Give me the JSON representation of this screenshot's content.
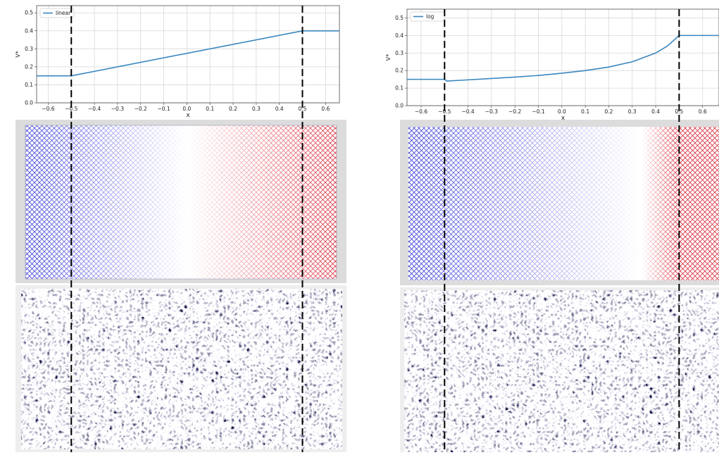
{
  "chart_data": [
    {
      "type": "line",
      "xlabel": "x",
      "ylabel": "V*",
      "grid": true,
      "legend": "upper left",
      "xlim": [
        -0.65,
        0.66
      ],
      "ylim": [
        0,
        0.54
      ],
      "xticks": [
        {
          "value": -0.6,
          "label": "−0.6"
        },
        {
          "value": -0.5,
          "label": "−0.5"
        },
        {
          "value": -0.4,
          "label": "−0.4"
        },
        {
          "value": -0.3,
          "label": "−0.3"
        },
        {
          "value": -0.2,
          "label": "−0.2"
        },
        {
          "value": -0.1,
          "label": "−0.1"
        },
        {
          "value": 0,
          "label": "0.0"
        },
        0.1,
        0.2,
        0.3,
        0.4,
        0.5,
        0.6
      ],
      "yticks": [
        {
          "value": 0,
          "label": "0.0"
        },
        0.1,
        0.2,
        0.3,
        0.4,
        0.5
      ],
      "vlines": [
        -0.5,
        0.5
      ],
      "x": [
        -0.65,
        -0.5,
        0.5,
        0.66
      ],
      "series": [
        {
          "name": "linear",
          "color": "#3a87c0",
          "values": [
            0.15,
            0.15,
            0.4,
            0.4
          ]
        }
      ]
    },
    {
      "type": "line",
      "xlabel": "x",
      "ylabel": "V*",
      "grid": true,
      "legend": "upper left",
      "xlim": [
        -0.66,
        0.67
      ],
      "ylim": [
        0,
        0.55
      ],
      "xticks": [
        {
          "value": -0.6,
          "label": "−0.6"
        },
        {
          "value": -0.5,
          "label": "−0.5"
        },
        {
          "value": -0.4,
          "label": "−0.4"
        },
        {
          "value": -0.3,
          "label": "−0.3"
        },
        {
          "value": -0.2,
          "label": "−0.2"
        },
        {
          "value": -0.1,
          "label": "−0.1"
        },
        {
          "value": 0,
          "label": "0.0"
        },
        0.1,
        0.2,
        0.3,
        0.4,
        0.5,
        0.6
      ],
      "yticks": [
        {
          "value": 0,
          "label": "0.0"
        },
        0.1,
        0.2,
        0.3,
        0.4,
        0.5
      ],
      "vlines": [
        -0.5,
        0.5
      ],
      "x": [
        -0.66,
        -0.5,
        -0.49,
        -0.4,
        -0.3,
        -0.2,
        -0.1,
        0,
        0.1,
        0.2,
        0.3,
        0.4,
        0.45,
        0.5,
        0.67
      ],
      "series": [
        {
          "name": "log",
          "color": "#3a87c0",
          "values": [
            0.15,
            0.15,
            0.14,
            0.147,
            0.155,
            0.163,
            0.172,
            0.185,
            0.2,
            0.22,
            0.25,
            0.3,
            0.34,
            0.4,
            0.4
          ]
        }
      ]
    }
  ]
}
